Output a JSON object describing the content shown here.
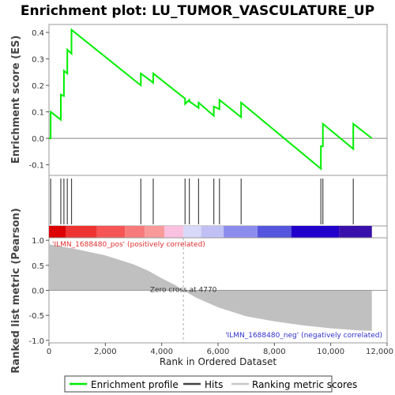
{
  "chart_data": {
    "type": "line",
    "title": "Enrichment plot: LU_TUMOR_VASCULATURE_UP",
    "es_panel": {
      "ylabel": "Enrichment score (ES)",
      "ylim": [
        -0.14,
        0.43
      ],
      "yticks": [
        -0.1,
        0.0,
        0.1,
        0.2,
        0.3,
        0.4
      ],
      "ytick_labels": [
        "-0.1",
        "0.0",
        "0.1",
        "0.2",
        "0.3",
        "0.4"
      ],
      "series": [
        {
          "name": "Enrichment profile",
          "color": "#00ee00",
          "x": [
            0,
            60,
            60,
            420,
            420,
            530,
            530,
            650,
            650,
            800,
            800,
            3260,
            3260,
            3700,
            3700,
            4830,
            4830,
            4980,
            4980,
            5310,
            5310,
            5850,
            5850,
            6050,
            6050,
            6820,
            6820,
            9650,
            9650,
            9720,
            9720,
            10800,
            10800,
            11460
          ],
          "y": [
            0.0,
            0.0,
            0.1,
            0.07,
            0.165,
            0.16,
            0.255,
            0.245,
            0.335,
            0.32,
            0.41,
            0.2,
            0.245,
            0.21,
            0.245,
            0.15,
            0.13,
            0.145,
            0.14,
            0.115,
            0.135,
            0.085,
            0.12,
            0.11,
            0.145,
            0.08,
            0.135,
            -0.115,
            -0.03,
            -0.03,
            0.055,
            -0.04,
            0.055,
            0.0
          ]
        }
      ]
    },
    "hits": {
      "name": "Hits",
      "positions": [
        60,
        420,
        530,
        650,
        800,
        3260,
        3700,
        4830,
        4980,
        5310,
        5850,
        6050,
        6820,
        9650,
        9720,
        10800
      ]
    },
    "heatmap_bar": {
      "segments": [
        {
          "x0": 0,
          "x1": 600,
          "color": "#dd0000"
        },
        {
          "x0": 600,
          "x1": 1700,
          "color": "#ee3333"
        },
        {
          "x0": 1700,
          "x1": 2700,
          "color": "#f55555"
        },
        {
          "x0": 2700,
          "x1": 3400,
          "color": "#f77a7a"
        },
        {
          "x0": 3400,
          "x1": 4100,
          "color": "#f99a9a"
        },
        {
          "x0": 4100,
          "x1": 4770,
          "color": "#f9c0e0"
        },
        {
          "x0": 4770,
          "x1": 5400,
          "color": "#d8d8f8"
        },
        {
          "x0": 5400,
          "x1": 6200,
          "color": "#c0c0f5"
        },
        {
          "x0": 6200,
          "x1": 7400,
          "color": "#8c8cee"
        },
        {
          "x0": 7400,
          "x1": 8600,
          "color": "#5555dd"
        },
        {
          "x0": 8600,
          "x1": 10300,
          "color": "#2200cc"
        },
        {
          "x0": 10300,
          "x1": 11460,
          "color": "#3a10aa"
        }
      ]
    },
    "metric_panel": {
      "name": "Ranking metric scores",
      "ylabel": "Ranked list metric (Pearson)",
      "xlabel": "Rank in Ordered Dataset",
      "xlim": [
        0,
        12000
      ],
      "ylim": [
        -1.05,
        1.05
      ],
      "xticks": [
        0,
        2000,
        4000,
        6000,
        8000,
        10000,
        12000
      ],
      "xtick_labels": [
        "0",
        "2,000",
        "4,000",
        "6,000",
        "8,000",
        "10,000",
        "12,000"
      ],
      "yticks": [
        -1.0,
        -0.5,
        0.0,
        0.5,
        1.0
      ],
      "ytick_labels": [
        "-1.0",
        "-0.5",
        "0.0",
        "0.5",
        "1.0"
      ],
      "fill_color": "#c0c0c0",
      "x": [
        0,
        200,
        1000,
        2000,
        3000,
        3500,
        4000,
        4500,
        4770,
        5200,
        6000,
        7000,
        8000,
        9000,
        10000,
        10500,
        11000,
        11460
      ],
      "y": [
        0.92,
        0.9,
        0.82,
        0.7,
        0.52,
        0.4,
        0.24,
        0.1,
        0.0,
        -0.14,
        -0.34,
        -0.52,
        -0.62,
        -0.7,
        -0.76,
        -0.78,
        -0.8,
        -0.81
      ],
      "zero_cross": 4770,
      "zero_cross_label": "Zero cross at 4770",
      "pos_label": "'ILMN_1688480_pos' (positively correlated)",
      "neg_label": "'ILMN_1688480_neg' (negatively correlated)"
    },
    "legend": {
      "placement": "bottom",
      "items": [
        {
          "label": "Enrichment profile",
          "color": "#00ee00"
        },
        {
          "label": "Hits",
          "color": "#444444"
        },
        {
          "label": "Ranking metric scores",
          "color": "#c8c8c8"
        }
      ]
    }
  }
}
